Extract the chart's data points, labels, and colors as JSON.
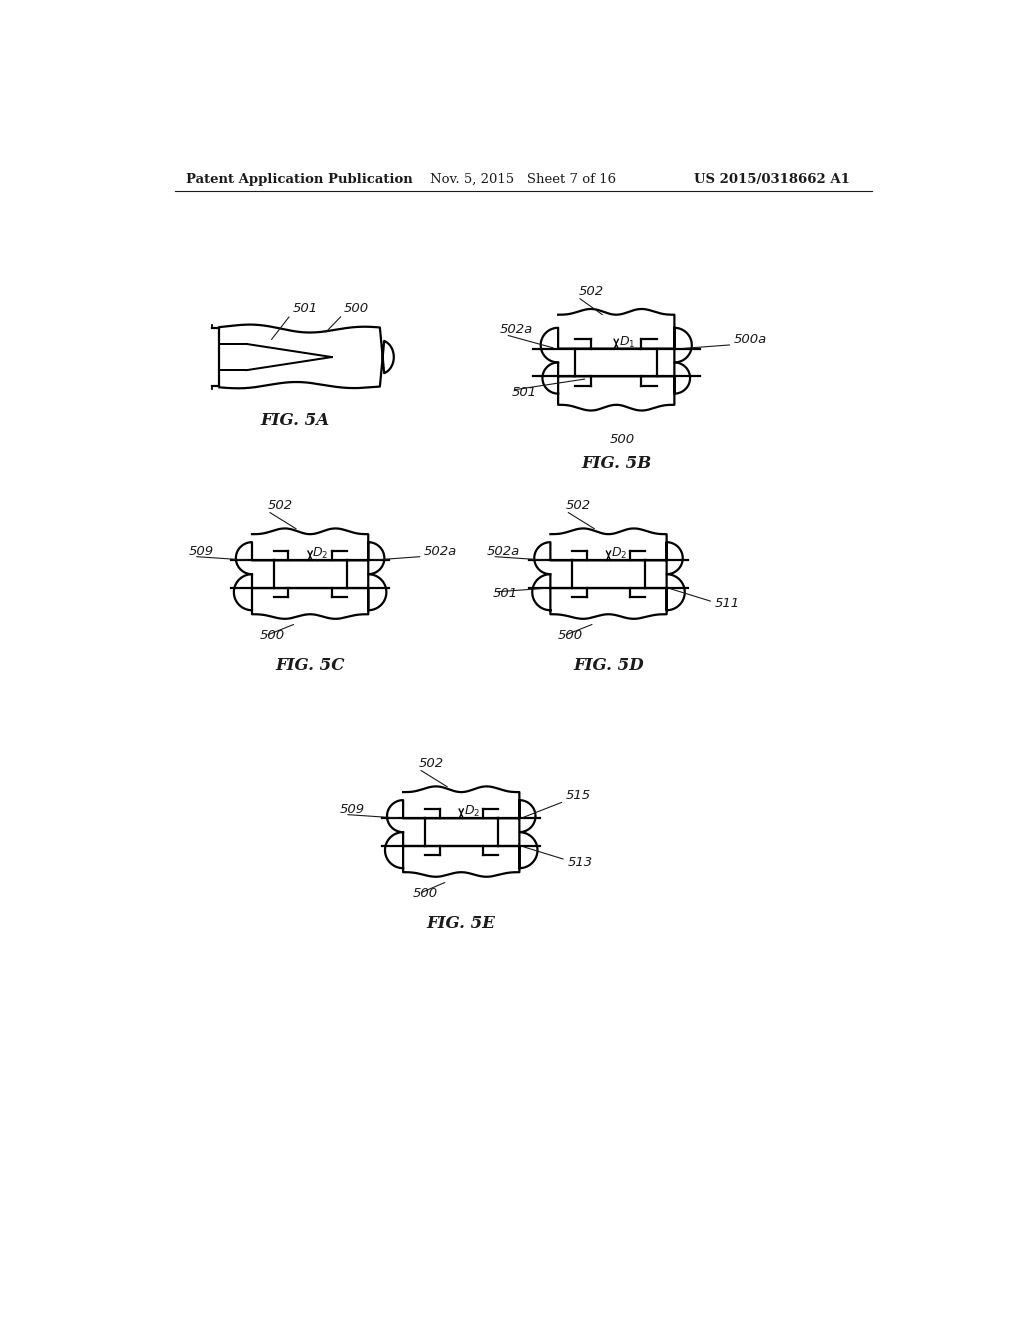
{
  "bg_color": "#ffffff",
  "header_left": "Patent Application Publication",
  "header_mid": "Nov. 5, 2015   Sheet 7 of 16",
  "header_right": "US 2015/0318662 A1",
  "text_color": "#1a1a1a",
  "line_color": "#000000",
  "line_width": 1.6
}
